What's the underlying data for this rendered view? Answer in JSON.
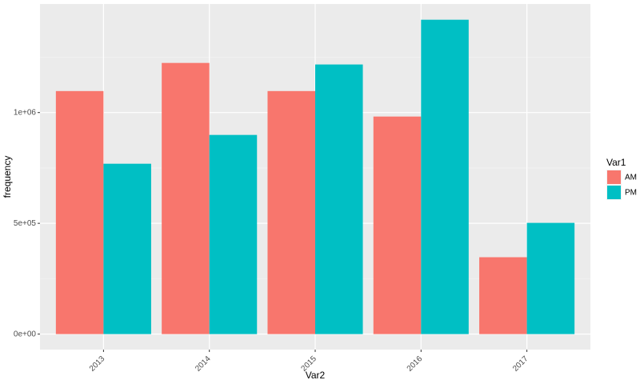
{
  "chart_data": {
    "type": "bar",
    "x_label": "Var2",
    "y_label": "frequency",
    "categories": [
      "2013",
      "2014",
      "2015",
      "2016",
      "2017"
    ],
    "series": [
      {
        "name": "AM",
        "color": "#F8766D",
        "values": [
          1097000,
          1224000,
          1097000,
          982000,
          347000
        ]
      },
      {
        "name": "PM",
        "color": "#00BFC4",
        "values": [
          769000,
          899000,
          1217000,
          1419000,
          502000
        ]
      }
    ],
    "ylim": [
      -70000,
      1490000
    ],
    "yticks": [
      {
        "value": 0,
        "label": "0e+00"
      },
      {
        "value": 500000,
        "label": "5e+05"
      },
      {
        "value": 1000000,
        "label": "1e+06"
      }
    ],
    "y_minor_ticks": [
      250000,
      750000,
      1250000
    ],
    "grid": true,
    "legend_title": "Var1",
    "legend_position": "right"
  }
}
